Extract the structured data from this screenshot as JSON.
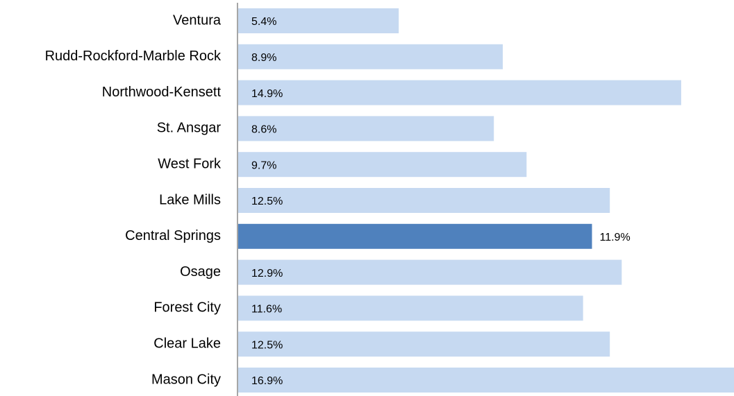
{
  "chart_data": {
    "type": "barh",
    "categories": [
      "Ventura",
      "Rudd-Rockford-Marble Rock",
      "Northwood-Kensett",
      "St. Ansgar",
      "West Fork",
      "Lake Mills",
      "Central Springs",
      "Osage",
      "Forest City",
      "Clear Lake",
      "Mason City"
    ],
    "values": [
      5.4,
      8.9,
      14.9,
      8.6,
      9.7,
      12.5,
      11.9,
      12.9,
      11.6,
      12.5,
      16.9
    ],
    "value_labels": [
      "5.4%",
      "8.9%",
      "14.9%",
      "8.6%",
      "9.7%",
      "12.5%",
      "11.9%",
      "12.9%",
      "11.6%",
      "12.5%",
      "16.9%"
    ],
    "color": "#c6d9f1",
    "highlight": "Central Springs",
    "highlight_color": "#4f81bd",
    "xlim": [
      0,
      16.7
    ]
  }
}
